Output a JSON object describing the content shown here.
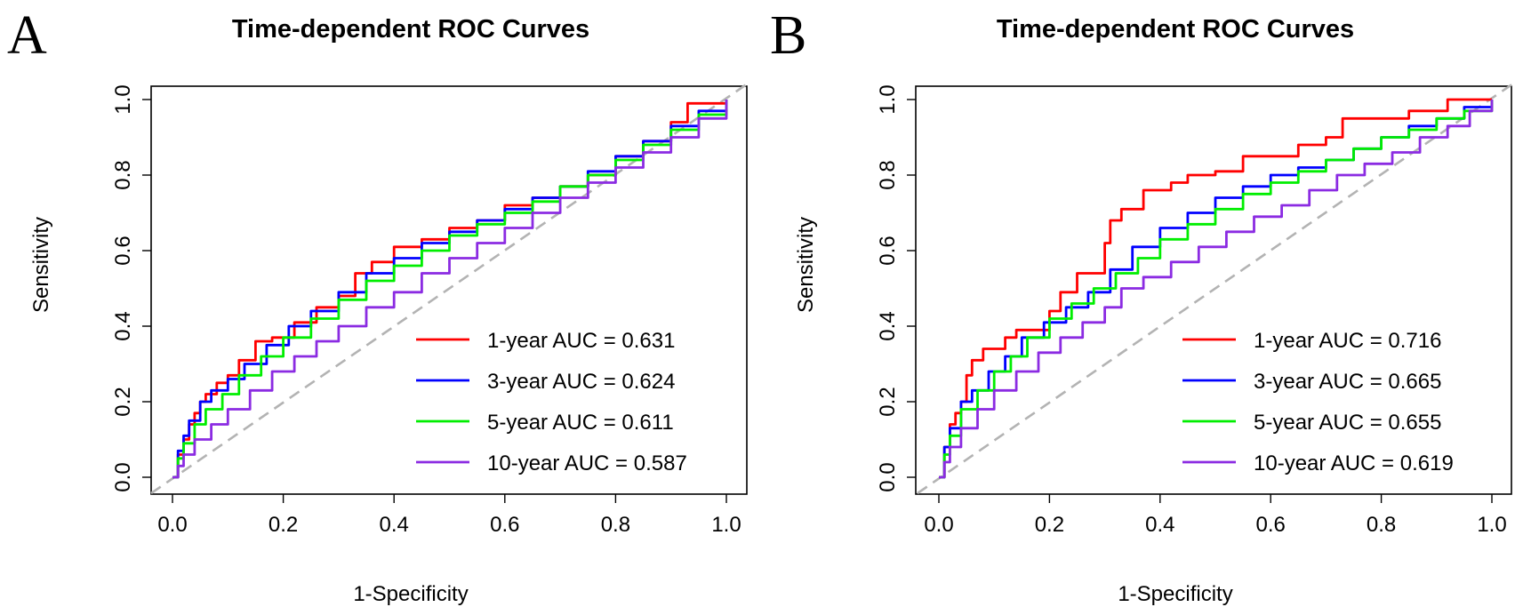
{
  "chart_data": [
    {
      "panel": "A",
      "type": "line",
      "title": "Time-dependent ROC Curves",
      "xlabel": "1-Specificity",
      "ylabel": "Sensitivity",
      "xlim": [
        0,
        1
      ],
      "ylim": [
        0,
        1
      ],
      "xticks": [
        "0.0",
        "0.2",
        "0.4",
        "0.6",
        "0.8",
        "1.0"
      ],
      "yticks": [
        "0.0",
        "0.2",
        "0.4",
        "0.6",
        "0.8",
        "1.0"
      ],
      "reference_line": {
        "x": [
          0,
          1
        ],
        "y": [
          0,
          1
        ],
        "color": "#b3b3b3",
        "style": "dashed"
      },
      "legend_position": "bottom-right",
      "series": [
        {
          "name": "1-year AUC = 0.631",
          "color": "#ff0000",
          "x": [
            0,
            0.01,
            0.02,
            0.03,
            0.04,
            0.05,
            0.06,
            0.08,
            0.1,
            0.12,
            0.15,
            0.18,
            0.22,
            0.26,
            0.3,
            0.33,
            0.36,
            0.4,
            0.45,
            0.5,
            0.55,
            0.6,
            0.65,
            0.7,
            0.75,
            0.8,
            0.85,
            0.9,
            0.93,
            0.95,
            0.97,
            1.0
          ],
          "y": [
            0,
            0.06,
            0.1,
            0.14,
            0.17,
            0.2,
            0.22,
            0.25,
            0.27,
            0.31,
            0.36,
            0.37,
            0.41,
            0.45,
            0.48,
            0.54,
            0.57,
            0.61,
            0.63,
            0.66,
            0.68,
            0.72,
            0.74,
            0.77,
            0.8,
            0.85,
            0.89,
            0.94,
            0.99,
            0.99,
            0.99,
            1.0
          ]
        },
        {
          "name": "3-year AUC = 0.624",
          "color": "#0000ff",
          "x": [
            0,
            0.01,
            0.02,
            0.03,
            0.05,
            0.07,
            0.1,
            0.13,
            0.17,
            0.21,
            0.25,
            0.3,
            0.35,
            0.4,
            0.45,
            0.5,
            0.55,
            0.6,
            0.65,
            0.7,
            0.75,
            0.8,
            0.85,
            0.9,
            0.95,
            1.0
          ],
          "y": [
            0,
            0.07,
            0.11,
            0.15,
            0.2,
            0.23,
            0.26,
            0.3,
            0.35,
            0.4,
            0.44,
            0.49,
            0.54,
            0.58,
            0.62,
            0.65,
            0.68,
            0.71,
            0.74,
            0.77,
            0.81,
            0.85,
            0.89,
            0.93,
            0.97,
            1.0
          ]
        },
        {
          "name": "5-year AUC = 0.611",
          "color": "#00ee00",
          "x": [
            0,
            0.01,
            0.02,
            0.04,
            0.06,
            0.09,
            0.12,
            0.16,
            0.2,
            0.25,
            0.3,
            0.35,
            0.4,
            0.45,
            0.5,
            0.55,
            0.6,
            0.65,
            0.7,
            0.75,
            0.8,
            0.85,
            0.9,
            0.95,
            1.0
          ],
          "y": [
            0,
            0.05,
            0.09,
            0.14,
            0.18,
            0.22,
            0.27,
            0.32,
            0.37,
            0.42,
            0.47,
            0.52,
            0.56,
            0.6,
            0.64,
            0.67,
            0.7,
            0.73,
            0.77,
            0.8,
            0.84,
            0.88,
            0.92,
            0.96,
            1.0
          ]
        },
        {
          "name": "10-year AUC = 0.587",
          "color": "#8b2be2",
          "x": [
            0,
            0.01,
            0.02,
            0.04,
            0.07,
            0.1,
            0.14,
            0.18,
            0.22,
            0.26,
            0.3,
            0.35,
            0.4,
            0.45,
            0.5,
            0.55,
            0.6,
            0.65,
            0.7,
            0.75,
            0.8,
            0.85,
            0.9,
            0.95,
            1.0
          ],
          "y": [
            0,
            0.03,
            0.06,
            0.1,
            0.14,
            0.18,
            0.23,
            0.28,
            0.32,
            0.36,
            0.4,
            0.45,
            0.49,
            0.54,
            0.58,
            0.62,
            0.66,
            0.7,
            0.74,
            0.78,
            0.82,
            0.86,
            0.9,
            0.95,
            1.0
          ]
        }
      ]
    },
    {
      "panel": "B",
      "type": "line",
      "title": "Time-dependent ROC Curves",
      "xlabel": "1-Specificity",
      "ylabel": "Sensitivity",
      "xlim": [
        0,
        1
      ],
      "ylim": [
        0,
        1
      ],
      "xticks": [
        "0.0",
        "0.2",
        "0.4",
        "0.6",
        "0.8",
        "1.0"
      ],
      "yticks": [
        "0.0",
        "0.2",
        "0.4",
        "0.6",
        "0.8",
        "1.0"
      ],
      "reference_line": {
        "x": [
          0,
          1
        ],
        "y": [
          0,
          1
        ],
        "color": "#b3b3b3",
        "style": "dashed"
      },
      "legend_position": "bottom-right",
      "series": [
        {
          "name": "1-year AUC = 0.716",
          "color": "#ff0000",
          "x": [
            0,
            0.01,
            0.02,
            0.03,
            0.04,
            0.05,
            0.06,
            0.08,
            0.1,
            0.12,
            0.14,
            0.17,
            0.2,
            0.22,
            0.25,
            0.28,
            0.3,
            0.31,
            0.33,
            0.37,
            0.42,
            0.45,
            0.5,
            0.55,
            0.6,
            0.65,
            0.7,
            0.73,
            0.78,
            0.85,
            0.92,
            1.0
          ],
          "y": [
            0,
            0.08,
            0.14,
            0.17,
            0.2,
            0.27,
            0.31,
            0.34,
            0.34,
            0.37,
            0.39,
            0.39,
            0.44,
            0.49,
            0.54,
            0.54,
            0.62,
            0.68,
            0.71,
            0.76,
            0.78,
            0.8,
            0.81,
            0.85,
            0.85,
            0.88,
            0.9,
            0.95,
            0.95,
            0.97,
            1.0,
            1.0
          ]
        },
        {
          "name": "3-year AUC = 0.665",
          "color": "#0000ff",
          "x": [
            0,
            0.01,
            0.02,
            0.04,
            0.06,
            0.09,
            0.12,
            0.15,
            0.19,
            0.23,
            0.27,
            0.31,
            0.35,
            0.4,
            0.45,
            0.5,
            0.55,
            0.6,
            0.65,
            0.7,
            0.75,
            0.8,
            0.85,
            0.9,
            0.95,
            1.0
          ],
          "y": [
            0,
            0.08,
            0.13,
            0.2,
            0.23,
            0.28,
            0.32,
            0.37,
            0.41,
            0.45,
            0.49,
            0.55,
            0.61,
            0.66,
            0.7,
            0.74,
            0.77,
            0.8,
            0.82,
            0.84,
            0.87,
            0.9,
            0.93,
            0.95,
            0.98,
            1.0
          ]
        },
        {
          "name": "5-year AUC = 0.655",
          "color": "#00ee00",
          "x": [
            0,
            0.01,
            0.02,
            0.04,
            0.07,
            0.1,
            0.13,
            0.16,
            0.2,
            0.24,
            0.28,
            0.32,
            0.36,
            0.4,
            0.45,
            0.5,
            0.55,
            0.6,
            0.65,
            0.7,
            0.75,
            0.8,
            0.85,
            0.9,
            0.95,
            1.0
          ],
          "y": [
            0,
            0.06,
            0.11,
            0.18,
            0.23,
            0.28,
            0.32,
            0.37,
            0.42,
            0.46,
            0.5,
            0.54,
            0.58,
            0.63,
            0.67,
            0.71,
            0.75,
            0.78,
            0.81,
            0.84,
            0.87,
            0.9,
            0.92,
            0.95,
            0.97,
            1.0
          ]
        },
        {
          "name": "10-year AUC = 0.619",
          "color": "#8b2be2",
          "x": [
            0,
            0.01,
            0.02,
            0.04,
            0.07,
            0.1,
            0.14,
            0.18,
            0.22,
            0.26,
            0.3,
            0.33,
            0.37,
            0.42,
            0.47,
            0.52,
            0.57,
            0.62,
            0.67,
            0.72,
            0.77,
            0.82,
            0.87,
            0.92,
            0.96,
            1.0
          ],
          "y": [
            0,
            0.04,
            0.08,
            0.13,
            0.18,
            0.23,
            0.28,
            0.33,
            0.37,
            0.41,
            0.45,
            0.5,
            0.53,
            0.57,
            0.61,
            0.65,
            0.69,
            0.72,
            0.76,
            0.8,
            0.83,
            0.86,
            0.9,
            0.93,
            0.97,
            1.0
          ]
        }
      ]
    }
  ]
}
